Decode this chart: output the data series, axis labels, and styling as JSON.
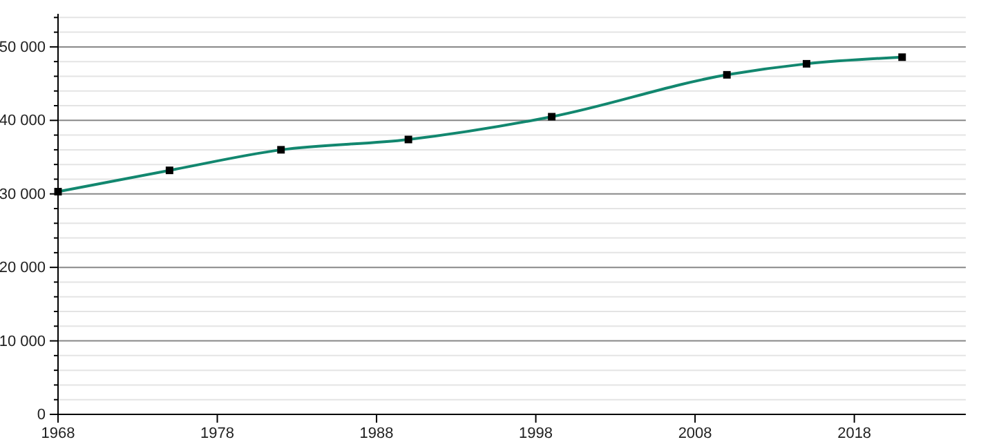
{
  "chart_data": {
    "type": "line",
    "x": [
      1968,
      1975,
      1982,
      1990,
      1999,
      2010,
      2015,
      2021
    ],
    "series": [
      {
        "color": "#12876f",
        "values": [
          30300,
          33200,
          36000,
          37400,
          40500,
          46200,
          47700,
          48600
        ]
      }
    ],
    "xlim": [
      1968,
      2025
    ],
    "xticks": [
      1968,
      1978,
      1988,
      1998,
      2008,
      2018
    ],
    "ylim": [
      0,
      54500
    ],
    "yticks": [
      {
        "value": 0,
        "label": "0"
      },
      {
        "value": 2000,
        "label": null
      },
      {
        "value": 4000,
        "label": null
      },
      {
        "value": 6000,
        "label": null
      },
      {
        "value": 8000,
        "label": null
      },
      {
        "value": 10000,
        "label": "10 000"
      },
      {
        "value": 12000,
        "label": null
      },
      {
        "value": 14000,
        "label": null
      },
      {
        "value": 16000,
        "label": null
      },
      {
        "value": 18000,
        "label": null
      },
      {
        "value": 20000,
        "label": "20 000"
      },
      {
        "value": 22000,
        "label": null
      },
      {
        "value": 24000,
        "label": null
      },
      {
        "value": 26000,
        "label": null
      },
      {
        "value": 28000,
        "label": null
      },
      {
        "value": 30000,
        "label": "30 000"
      },
      {
        "value": 32000,
        "label": null
      },
      {
        "value": 34000,
        "label": null
      },
      {
        "value": 36000,
        "label": null
      },
      {
        "value": 38000,
        "label": null
      },
      {
        "value": 40000,
        "label": "40 000"
      },
      {
        "value": 42000,
        "label": null
      },
      {
        "value": 44000,
        "label": null
      },
      {
        "value": 46000,
        "label": null
      },
      {
        "value": 48000,
        "label": null
      },
      {
        "value": 50000,
        "label": "50 000"
      },
      {
        "value": 52000,
        "label": null
      },
      {
        "value": 54000,
        "label": null
      }
    ],
    "grid": "y",
    "marker": "square",
    "line_style": "solid"
  }
}
